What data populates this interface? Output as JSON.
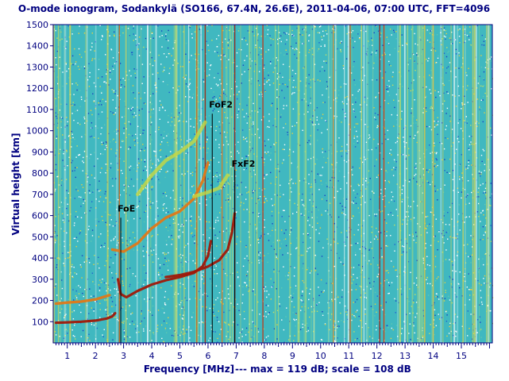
{
  "chart_data": {
    "type": "heatmap",
    "title": "O-mode ionogram, Sodankylä (SO166, 67.4N, 26.6E), 2011-04-06, 07:00 UTC, FFT=4096",
    "xlabel": "Frequency [MHz]",
    "xlabel_suffix": "---    max = 119 dB; scale = 108 dB",
    "ylabel": "Virtual height [km]",
    "xlim": [
      0.5,
      16.1
    ],
    "ylim": [
      0,
      1500
    ],
    "x_ticks": [
      1,
      2,
      3,
      4,
      5,
      6,
      7,
      8,
      9,
      10,
      11,
      12,
      13,
      14,
      15
    ],
    "y_ticks": [
      100,
      200,
      300,
      400,
      500,
      600,
      700,
      800,
      900,
      1000,
      1100,
      1200,
      1300,
      1400,
      1500
    ],
    "background_color": "#40b8c0",
    "trace_colors": {
      "strong": "#a01808",
      "medium": "#e07818",
      "weak": "#c8d840"
    },
    "annotations": [
      {
        "label": "FoE",
        "frequency": 2.9,
        "height_top": 590,
        "label_height": 620
      },
      {
        "label": "FoF2",
        "frequency": 6.15,
        "height_top": 1080,
        "label_height": 1110
      },
      {
        "label": "FxF2",
        "frequency": 6.95,
        "height_top": 815,
        "label_height": 830
      }
    ],
    "traces": [
      {
        "name": "E-layer echo",
        "strength": "strong",
        "points": [
          [
            0.6,
            95
          ],
          [
            1.0,
            97
          ],
          [
            1.5,
            100
          ],
          [
            2.0,
            105
          ],
          [
            2.4,
            115
          ],
          [
            2.6,
            125
          ],
          [
            2.7,
            140
          ]
        ]
      },
      {
        "name": "E-layer 2nd hop",
        "strength": "medium",
        "points": [
          [
            0.6,
            185
          ],
          [
            1.0,
            190
          ],
          [
            1.5,
            195
          ],
          [
            2.0,
            205
          ],
          [
            2.5,
            225
          ]
        ]
      },
      {
        "name": "F2 O-mode trace",
        "strength": "strong",
        "points": [
          [
            2.8,
            300
          ],
          [
            2.9,
            230
          ],
          [
            3.1,
            215
          ],
          [
            3.5,
            245
          ],
          [
            4.0,
            275
          ],
          [
            4.5,
            295
          ],
          [
            5.0,
            310
          ],
          [
            5.5,
            330
          ],
          [
            5.8,
            360
          ],
          [
            6.0,
            410
          ],
          [
            6.1,
            480
          ]
        ]
      },
      {
        "name": "F2 X-mode trace",
        "strength": "strong",
        "points": [
          [
            4.5,
            310
          ],
          [
            5.0,
            320
          ],
          [
            5.5,
            335
          ],
          [
            6.0,
            360
          ],
          [
            6.4,
            390
          ],
          [
            6.7,
            440
          ],
          [
            6.85,
            520
          ],
          [
            6.95,
            610
          ]
        ]
      },
      {
        "name": "F2 2nd hop",
        "strength": "medium",
        "points": [
          [
            2.6,
            440
          ],
          [
            3.0,
            430
          ],
          [
            3.5,
            470
          ],
          [
            4.0,
            540
          ],
          [
            4.5,
            590
          ],
          [
            5.0,
            620
          ],
          [
            5.5,
            680
          ],
          [
            5.8,
            760
          ],
          [
            6.0,
            850
          ]
        ]
      },
      {
        "name": "F2 3rd hop",
        "strength": "weak",
        "points": [
          [
            3.5,
            700
          ],
          [
            4.0,
            790
          ],
          [
            4.5,
            860
          ],
          [
            5.0,
            900
          ],
          [
            5.5,
            950
          ],
          [
            5.9,
            1040
          ]
        ]
      },
      {
        "name": "X 2nd hop",
        "strength": "weak",
        "points": [
          [
            5.5,
            690
          ],
          [
            6.0,
            710
          ],
          [
            6.4,
            730
          ],
          [
            6.7,
            790
          ]
        ]
      }
    ],
    "interference_lines": [
      {
        "frequency": 2.85,
        "color": "#d86010"
      },
      {
        "frequency": 5.6,
        "color": "#d86010"
      },
      {
        "frequency": 5.9,
        "color": "#a01808"
      },
      {
        "frequency": 6.5,
        "color": "#e07818"
      },
      {
        "frequency": 6.95,
        "color": "#a01808"
      },
      {
        "frequency": 7.95,
        "color": "#c83010"
      },
      {
        "frequency": 11.05,
        "color": "#d86010"
      },
      {
        "frequency": 12.1,
        "color": "#a01808"
      },
      {
        "frequency": 12.25,
        "color": "#c83010"
      },
      {
        "frequency": 13.7,
        "color": "#d8c040"
      },
      {
        "frequency": 14.0,
        "color": "#d8c040"
      },
      {
        "frequency": 10.45,
        "color": "#e09030"
      }
    ]
  }
}
